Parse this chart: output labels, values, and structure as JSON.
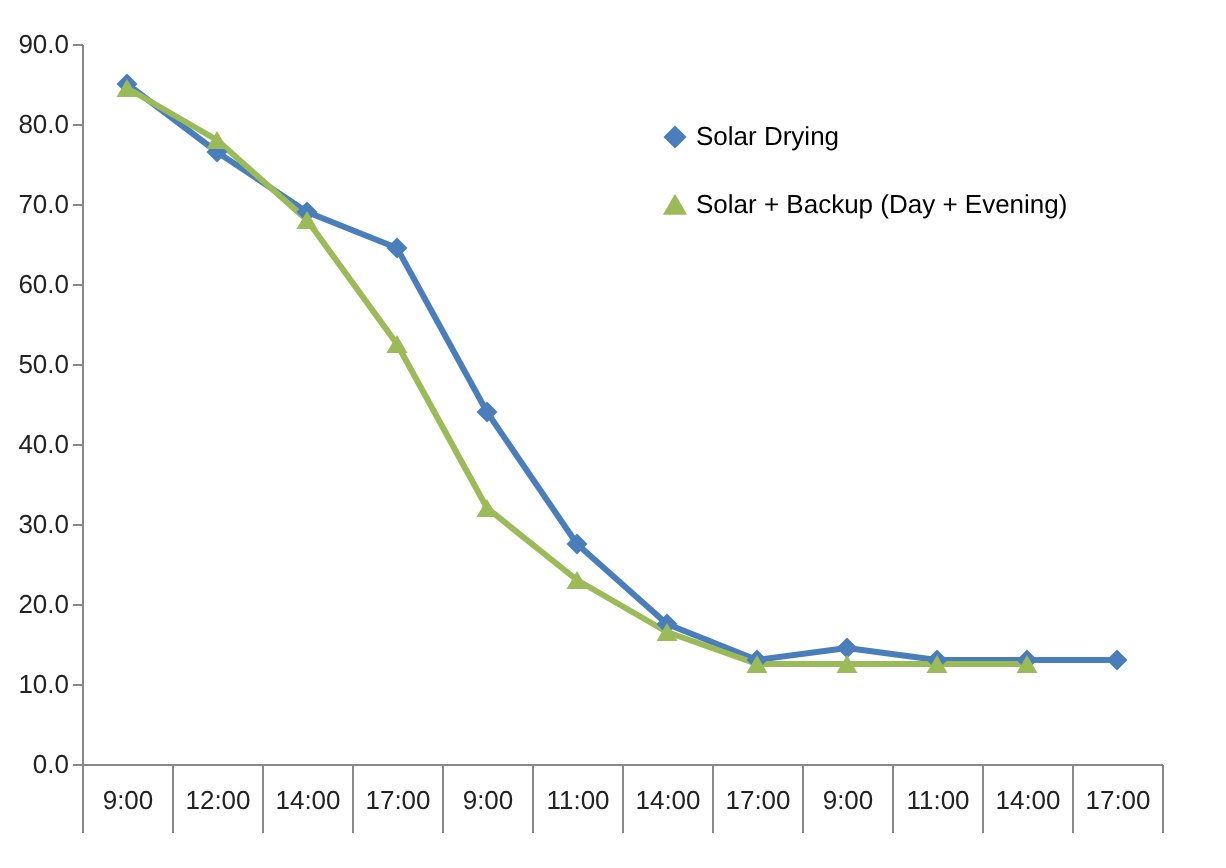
{
  "chart_data": {
    "type": "line",
    "categories": [
      "9:00",
      "12:00",
      "14:00",
      "17:00",
      "9:00",
      "11:00",
      "14:00",
      "17:00",
      "9:00",
      "11:00",
      "14:00",
      "17:00"
    ],
    "series": [
      {
        "name": "Solar Drying",
        "color": "#4a7ebb",
        "marker": "diamond",
        "values": [
          85,
          76.5,
          69,
          64.5,
          44,
          27.5,
          17.5,
          13,
          14.5,
          13,
          13,
          13
        ]
      },
      {
        "name": "Solar + Backup (Day + Evening)",
        "color": "#9bbb59",
        "marker": "triangle",
        "values": [
          84.5,
          78,
          68,
          52.5,
          32,
          23,
          16.5,
          12.5,
          12.5,
          12.5,
          12.5,
          null
        ]
      }
    ],
    "ylim": [
      0,
      90
    ],
    "yticks": [
      {
        "value": 0,
        "label": "0.0"
      },
      {
        "value": 10,
        "label": "10.0"
      },
      {
        "value": 20,
        "label": "20.0"
      },
      {
        "value": 30,
        "label": "30.0"
      },
      {
        "value": 40,
        "label": "40.0"
      },
      {
        "value": 50,
        "label": "50.0"
      },
      {
        "value": 60,
        "label": "60.0"
      },
      {
        "value": 70,
        "label": "70.0"
      },
      {
        "value": 80,
        "label": "80.0"
      },
      {
        "value": 90,
        "label": "90.0"
      }
    ],
    "grid": false,
    "legend": "top right"
  }
}
